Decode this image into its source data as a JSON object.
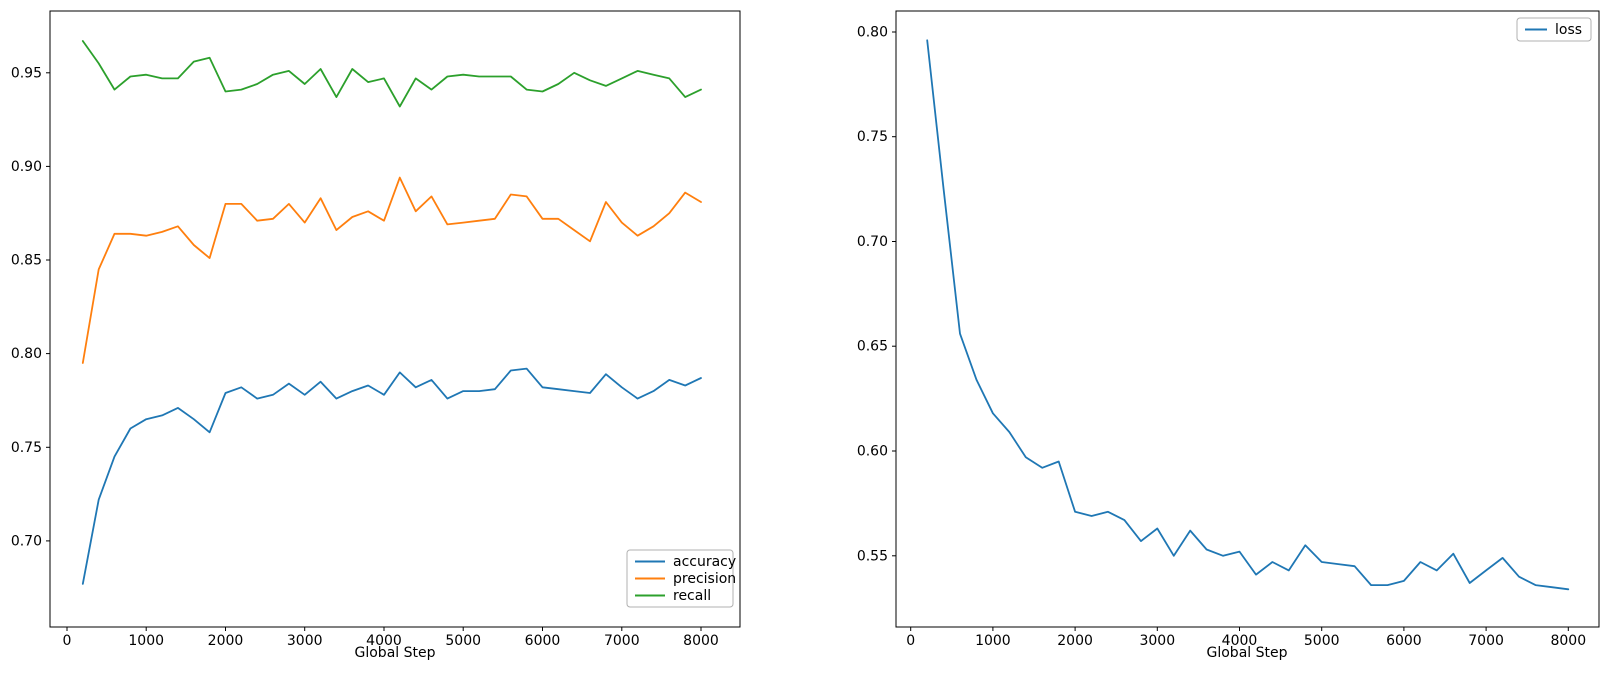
{
  "figure": {
    "background": "#ffffff",
    "spine_color": "#000000",
    "tick_label_color": "#000000"
  },
  "chart_data": [
    {
      "id": "metrics",
      "type": "line",
      "title": "",
      "xlabel": "Global Step",
      "ylabel": "",
      "grid": false,
      "legend_position": "lower right",
      "xlim": [
        -214,
        8492
      ],
      "ylim": [
        0.654,
        0.983
      ],
      "xticks": [
        0,
        1000,
        2000,
        3000,
        4000,
        5000,
        6000,
        7000,
        8000
      ],
      "xtick_labels": [
        "0",
        "1000",
        "2000",
        "3000",
        "4000",
        "5000",
        "6000",
        "7000",
        "8000"
      ],
      "yticks": [
        0.7,
        0.75,
        0.8,
        0.85,
        0.9,
        0.95
      ],
      "ytick_labels": [
        "0.70",
        "0.75",
        "0.80",
        "0.85",
        "0.90",
        "0.95"
      ],
      "x": [
        200,
        400,
        600,
        800,
        1000,
        1200,
        1400,
        1600,
        1800,
        2000,
        2200,
        2400,
        2600,
        2800,
        3000,
        3200,
        3400,
        3600,
        3800,
        4000,
        4200,
        4400,
        4600,
        4800,
        5000,
        5200,
        5400,
        5600,
        5800,
        6000,
        6200,
        6400,
        6600,
        6800,
        7000,
        7200,
        7400,
        7600,
        7800,
        8000
      ],
      "series": [
        {
          "name": "accuracy",
          "color": "#1f77b4",
          "values": [
            0.677,
            0.722,
            0.745,
            0.76,
            0.765,
            0.767,
            0.771,
            0.765,
            0.758,
            0.779,
            0.782,
            0.776,
            0.778,
            0.784,
            0.778,
            0.785,
            0.776,
            0.78,
            0.783,
            0.778,
            0.79,
            0.782,
            0.786,
            0.776,
            0.78,
            0.78,
            0.781,
            0.791,
            0.792,
            0.782,
            0.781,
            0.78,
            0.779,
            0.789,
            0.782,
            0.776,
            0.78,
            0.786,
            0.783,
            0.787
          ]
        },
        {
          "name": "precision",
          "color": "#ff7f0e",
          "values": [
            0.795,
            0.845,
            0.864,
            0.864,
            0.863,
            0.865,
            0.868,
            0.858,
            0.851,
            0.88,
            0.88,
            0.871,
            0.872,
            0.88,
            0.87,
            0.883,
            0.866,
            0.873,
            0.876,
            0.871,
            0.894,
            0.876,
            0.884,
            0.869,
            0.87,
            0.871,
            0.872,
            0.885,
            0.884,
            0.872,
            0.872,
            0.866,
            0.86,
            0.881,
            0.87,
            0.863,
            0.868,
            0.875,
            0.886,
            0.881
          ]
        },
        {
          "name": "recall",
          "color": "#2ca02c",
          "values": [
            0.967,
            0.955,
            0.941,
            0.948,
            0.949,
            0.947,
            0.947,
            0.956,
            0.958,
            0.94,
            0.941,
            0.944,
            0.949,
            0.951,
            0.944,
            0.952,
            0.937,
            0.952,
            0.945,
            0.947,
            0.932,
            0.947,
            0.941,
            0.948,
            0.949,
            0.948,
            0.948,
            0.948,
            0.941,
            0.94,
            0.944,
            0.95,
            0.946,
            0.943,
            0.947,
            0.951,
            0.949,
            0.947,
            0.937,
            0.941
          ]
        }
      ]
    },
    {
      "id": "loss",
      "type": "line",
      "title": "",
      "xlabel": "Global Step",
      "ylabel": "",
      "grid": false,
      "legend_position": "upper right",
      "xlim": [
        -179,
        8373
      ],
      "ylim": [
        0.516,
        0.81
      ],
      "xticks": [
        0,
        1000,
        2000,
        3000,
        4000,
        5000,
        6000,
        7000,
        8000
      ],
      "xtick_labels": [
        "0",
        "1000",
        "2000",
        "3000",
        "4000",
        "5000",
        "6000",
        "7000",
        "8000"
      ],
      "yticks": [
        0.55,
        0.6,
        0.65,
        0.7,
        0.75,
        0.8
      ],
      "ytick_labels": [
        "0.55",
        "0.60",
        "0.65",
        "0.70",
        "0.75",
        "0.80"
      ],
      "x": [
        200,
        400,
        600,
        800,
        1000,
        1200,
        1400,
        1600,
        1800,
        2000,
        2200,
        2400,
        2600,
        2800,
        3000,
        3200,
        3400,
        3600,
        3800,
        4000,
        4200,
        4400,
        4600,
        4800,
        5000,
        5200,
        5400,
        5600,
        5800,
        6000,
        6200,
        6400,
        6600,
        6800,
        7000,
        7200,
        7400,
        7600,
        7800,
        8000
      ],
      "series": [
        {
          "name": "loss",
          "color": "#1f77b4",
          "values": [
            0.796,
            0.725,
            0.656,
            0.634,
            0.618,
            0.609,
            0.597,
            0.592,
            0.595,
            0.571,
            0.569,
            0.571,
            0.567,
            0.557,
            0.563,
            0.55,
            0.562,
            0.553,
            0.55,
            0.552,
            0.541,
            0.547,
            0.543,
            0.555,
            0.547,
            0.546,
            0.545,
            0.536,
            0.536,
            0.538,
            0.547,
            0.543,
            0.551,
            0.537,
            0.543,
            0.549,
            0.54,
            0.536,
            0.535,
            0.534
          ]
        }
      ]
    }
  ]
}
